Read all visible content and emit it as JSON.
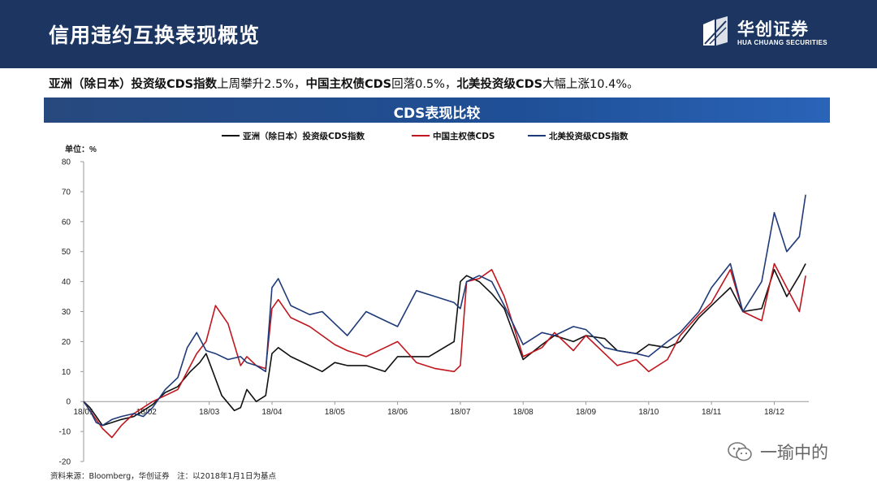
{
  "header": {
    "title": "信用违约互换表现概览",
    "logo_cn": "华创证券",
    "logo_en": "HUA CHUANG SECURITIES"
  },
  "summary": {
    "part1_bold": "亚洲（除日本）投资级CDS指数",
    "part1_text": "上周攀升2.5%，",
    "part2_bold": "中国主权债CDS",
    "part2_text": "回落0.5%，",
    "part3_bold": "北美投资级CDS",
    "part3_text": "大幅上涨10.4%。"
  },
  "chart_banner": {
    "title": "CDS表现比较"
  },
  "footer": {
    "source": "资料来源：Bloomberg，华创证券　注：以2018年1月1日为基点",
    "watermark": "一瑜中的"
  },
  "colors": {
    "header_bg": "#1c3661",
    "asia": "#111111",
    "china": "#c0161e",
    "na": "#1f3a78"
  },
  "chart_data": {
    "type": "line",
    "unit_label": "单位：%",
    "ylim": [
      -20,
      80
    ],
    "yticks": [
      -20,
      -10,
      0,
      10,
      20,
      30,
      40,
      50,
      60,
      70,
      80
    ],
    "x_tick_labels": [
      "18/01",
      "18/02",
      "18/03",
      "18/04",
      "18/05",
      "18/06",
      "18/07",
      "18/08",
      "18/09",
      "18/10",
      "18/11",
      "18/12"
    ],
    "legend_position": "top",
    "grid": false,
    "series": [
      {
        "name": "亚洲（除日本）投资级CDS指数",
        "color": "#111111",
        "x": [
          0,
          0.1,
          0.2,
          0.3,
          0.45,
          0.6,
          0.8,
          0.95,
          1.1,
          1.3,
          1.5,
          1.7,
          1.85,
          1.95,
          2.2,
          2.4,
          2.5,
          2.6,
          2.75,
          2.9,
          3.0,
          3.1,
          3.3,
          3.6,
          3.8,
          4.0,
          4.2,
          4.5,
          4.8,
          5.0,
          5.5,
          5.9,
          6.0,
          6.1,
          6.3,
          6.5,
          6.7,
          7.0,
          7.3,
          7.5,
          7.8,
          8.0,
          8.3,
          8.5,
          8.8,
          9.0,
          9.3,
          9.5,
          9.8,
          10.0,
          10.3,
          10.5,
          10.8,
          11.0,
          11.2,
          11.4,
          11.5
        ],
        "y": [
          0,
          -2,
          -5,
          -8,
          -7,
          -6,
          -5,
          -3,
          -1,
          3,
          5,
          10,
          13,
          16,
          2,
          -3,
          -2,
          4,
          0,
          2,
          16,
          18,
          15,
          12,
          10,
          13,
          12,
          12,
          10,
          15,
          15,
          20,
          40,
          42,
          40,
          36,
          31,
          14,
          19,
          22,
          20,
          22,
          21,
          17,
          16,
          19,
          18,
          20,
          28,
          32,
          38,
          30,
          31,
          44,
          35,
          42,
          46
        ]
      },
      {
        "name": "中国主权债CDS",
        "color": "#c0161e",
        "x": [
          0,
          0.1,
          0.2,
          0.3,
          0.45,
          0.6,
          0.8,
          0.95,
          1.1,
          1.3,
          1.5,
          1.65,
          1.8,
          1.95,
          2.1,
          2.3,
          2.5,
          2.6,
          2.75,
          2.9,
          3.0,
          3.1,
          3.3,
          3.6,
          3.8,
          4.0,
          4.2,
          4.5,
          4.8,
          5.0,
          5.3,
          5.6,
          5.9,
          6.0,
          6.1,
          6.3,
          6.5,
          6.7,
          7.0,
          7.3,
          7.5,
          7.8,
          8.0,
          8.3,
          8.5,
          8.8,
          9.0,
          9.3,
          9.5,
          9.8,
          10.0,
          10.3,
          10.5,
          10.8,
          11.0,
          11.2,
          11.4,
          11.5
        ],
        "y": [
          0,
          -3,
          -6,
          -9,
          -12,
          -8,
          -4,
          -2,
          0,
          2,
          4,
          10,
          16,
          20,
          32,
          26,
          12,
          15,
          12,
          11,
          31,
          34,
          28,
          25,
          22,
          19,
          17,
          15,
          18,
          20,
          13,
          11,
          10,
          12,
          40,
          41,
          44,
          35,
          15,
          18,
          23,
          17,
          22,
          16,
          12,
          14,
          10,
          14,
          22,
          29,
          33,
          44,
          30,
          27,
          46,
          38,
          30,
          42
        ]
      },
      {
        "name": "北美投资级CDS指数",
        "color": "#1f3a78",
        "x": [
          0,
          0.1,
          0.2,
          0.3,
          0.45,
          0.6,
          0.8,
          0.95,
          1.1,
          1.3,
          1.5,
          1.65,
          1.8,
          1.95,
          2.1,
          2.3,
          2.5,
          2.6,
          2.75,
          2.9,
          3.0,
          3.1,
          3.3,
          3.6,
          3.8,
          4.0,
          4.2,
          4.5,
          4.8,
          5.0,
          5.3,
          5.6,
          5.9,
          6.0,
          6.1,
          6.3,
          6.5,
          6.7,
          7.0,
          7.3,
          7.5,
          7.8,
          8.0,
          8.3,
          8.5,
          8.8,
          9.0,
          9.3,
          9.5,
          9.8,
          10.0,
          10.3,
          10.5,
          10.8,
          11.0,
          11.2,
          11.4,
          11.5
        ],
        "y": [
          0,
          -3,
          -7,
          -8,
          -6,
          -5,
          -4,
          -5,
          -2,
          4,
          8,
          18,
          23,
          17,
          16,
          14,
          15,
          13,
          12,
          10,
          38,
          41,
          32,
          29,
          30,
          26,
          22,
          30,
          27,
          25,
          37,
          35,
          33,
          31,
          40,
          42,
          40,
          32,
          19,
          23,
          22,
          25,
          24,
          18,
          17,
          16,
          15,
          20,
          23,
          30,
          38,
          46,
          30,
          40,
          63,
          50,
          55,
          69
        ]
      }
    ]
  }
}
